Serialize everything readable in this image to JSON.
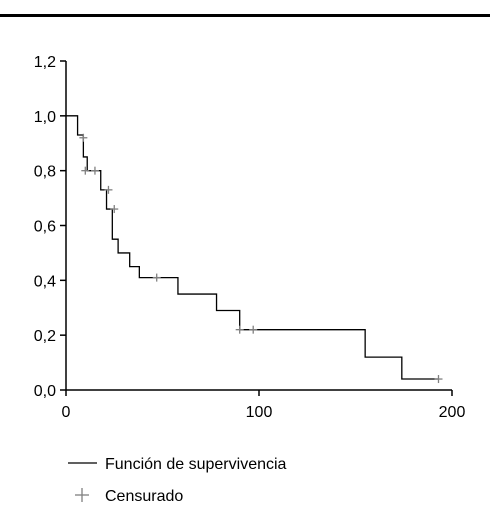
{
  "chart_data": {
    "type": "line",
    "title": "",
    "xlabel": "",
    "ylabel": "",
    "xlim": [
      0,
      200
    ],
    "ylim": [
      0,
      1.2
    ],
    "x_ticks": [
      0,
      100,
      200
    ],
    "x_tick_labels": [
      "0",
      "100",
      "200"
    ],
    "y_ticks": [
      0,
      0.2,
      0.4,
      0.6,
      0.8,
      1.0,
      1.2
    ],
    "y_tick_labels": [
      "0,0",
      "0,2",
      "0,4",
      "0,6",
      "0,8",
      "1,0",
      "1,2"
    ],
    "grid": false,
    "legend_position": "bottom-left",
    "series": [
      {
        "name": "Función de supervivencia",
        "style": "step",
        "color": "#000000",
        "x": [
          0,
          6,
          9,
          11,
          18,
          21,
          24,
          27,
          33,
          38,
          45,
          58,
          78,
          90,
          155,
          174,
          193
        ],
        "y": [
          1.0,
          0.93,
          0.85,
          0.8,
          0.73,
          0.66,
          0.55,
          0.5,
          0.45,
          0.41,
          0.41,
          0.35,
          0.29,
          0.22,
          0.12,
          0.04,
          0.04
        ]
      }
    ],
    "censored": {
      "name": "Censurado",
      "marker": "+",
      "color": "#808080",
      "points": [
        {
          "x": 9,
          "y": 0.92
        },
        {
          "x": 10,
          "y": 0.8
        },
        {
          "x": 15,
          "y": 0.8
        },
        {
          "x": 22,
          "y": 0.73
        },
        {
          "x": 25,
          "y": 0.66
        },
        {
          "x": 47,
          "y": 0.41
        },
        {
          "x": 90,
          "y": 0.22
        },
        {
          "x": 97,
          "y": 0.22
        },
        {
          "x": 193,
          "y": 0.04
        }
      ]
    }
  }
}
